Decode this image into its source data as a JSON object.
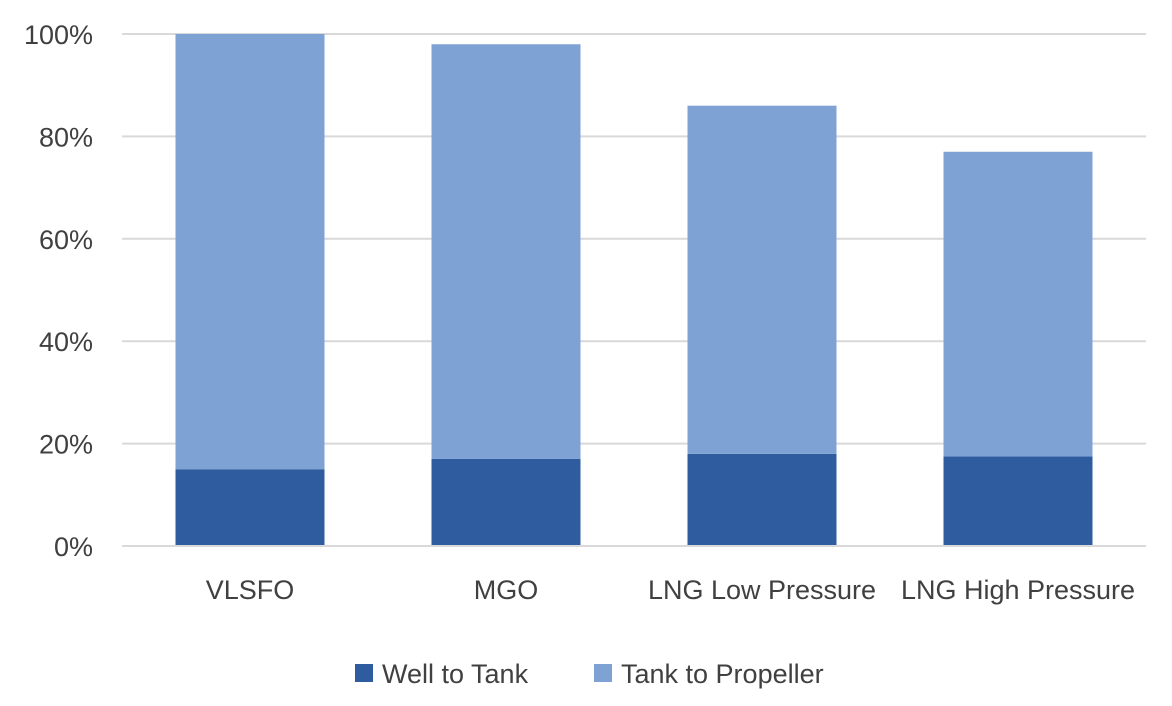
{
  "chart_data": {
    "type": "bar",
    "stacked": true,
    "title": "",
    "xlabel": "",
    "ylabel": "",
    "ylim": [
      0,
      100
    ],
    "y_ticks": [
      "0%",
      "20%",
      "40%",
      "60%",
      "80%",
      "100%"
    ],
    "y_tick_values": [
      0,
      20,
      40,
      60,
      80,
      100
    ],
    "grid": true,
    "legend_position": "bottom-center",
    "categories": [
      "VLSFO",
      "MGO",
      "LNG Low Pressure",
      "LNG High Pressure"
    ],
    "series": [
      {
        "name": "Well to Tank",
        "color": "#2e5c9e",
        "values": [
          15,
          17,
          18,
          17.5
        ]
      },
      {
        "name": "Tank to Propeller",
        "color": "#7fa2d4",
        "values": [
          85,
          81,
          68,
          59.5
        ]
      }
    ]
  }
}
